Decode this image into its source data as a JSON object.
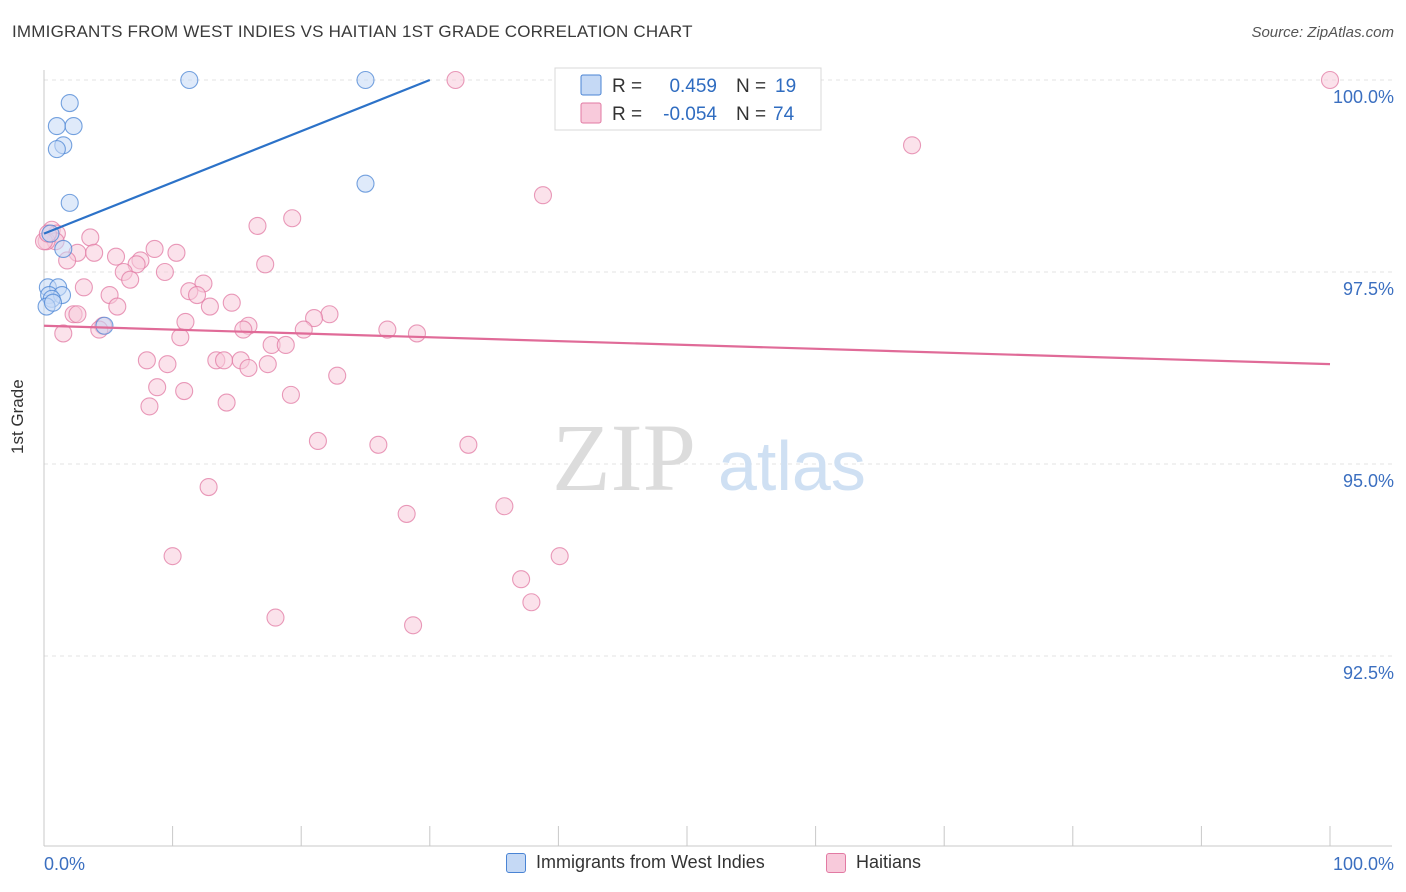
{
  "chart_data": {
    "type": "scatter",
    "title": "IMMIGRANTS FROM WEST INDIES VS HAITIAN 1ST GRADE CORRELATION CHART",
    "source": "Source: ZipAtlas.com",
    "ylabel": "1st Grade",
    "xlim": [
      0,
      100
    ],
    "ylim": [
      90.0,
      100.0
    ],
    "x_tick_labels": [
      "0.0%",
      "100.0%"
    ],
    "y_ticks": [
      {
        "value": 100.0,
        "label": "100.0%"
      },
      {
        "value": 97.5,
        "label": "97.5%"
      },
      {
        "value": 95.0,
        "label": "95.0%"
      },
      {
        "value": 92.5,
        "label": "92.5%"
      }
    ],
    "watermark": {
      "zip": "ZIP",
      "atlas": "atlas"
    },
    "colors": {
      "blue": "#4a84d4",
      "blue_fill": "#c5d9f5",
      "pink": "#e27aa3",
      "pink_fill": "#f8cadb",
      "line_blue": "#2c72c8",
      "line_pink": "#e06b98",
      "value_blue": "#2f6cc0"
    },
    "stats": [
      {
        "r_label": "R =",
        "r_value": "0.459",
        "n_label": "N =",
        "n_value": "19"
      },
      {
        "r_label": "R =",
        "r_value": "-0.054",
        "n_label": "N =",
        "n_value": "74"
      }
    ],
    "series": [
      {
        "name": "Immigrants from West Indies",
        "color": "blue",
        "trend": {
          "x": [
            0.0,
            30.0
          ],
          "y": [
            98.0,
            100.0
          ]
        },
        "points": [
          [
            11.3,
            100.0
          ],
          [
            25.0,
            100.0
          ],
          [
            2.0,
            99.7
          ],
          [
            1.0,
            99.4
          ],
          [
            2.3,
            99.4
          ],
          [
            1.5,
            99.15
          ],
          [
            1.0,
            99.1
          ],
          [
            2.0,
            98.4
          ],
          [
            25.0,
            98.65
          ],
          [
            0.5,
            98.0
          ],
          [
            1.5,
            97.8
          ],
          [
            0.3,
            97.3
          ],
          [
            1.1,
            97.3
          ],
          [
            0.4,
            97.2
          ],
          [
            1.4,
            97.2
          ],
          [
            0.6,
            97.15
          ],
          [
            0.2,
            97.05
          ],
          [
            0.7,
            97.1
          ],
          [
            4.7,
            96.8
          ]
        ]
      },
      {
        "name": "Haitians",
        "color": "pink",
        "trend": {
          "x": [
            0.0,
            100.0
          ],
          "y": [
            96.8,
            96.3
          ]
        },
        "points": [
          [
            32.0,
            100.0
          ],
          [
            100.0,
            100.0
          ],
          [
            67.5,
            99.15
          ],
          [
            38.8,
            98.5
          ],
          [
            19.3,
            98.2
          ],
          [
            16.6,
            98.1
          ],
          [
            0.6,
            98.05
          ],
          [
            1.0,
            98.0
          ],
          [
            3.6,
            97.95
          ],
          [
            0.9,
            97.9
          ],
          [
            0.2,
            97.9
          ],
          [
            2.6,
            97.75
          ],
          [
            3.9,
            97.75
          ],
          [
            5.6,
            97.7
          ],
          [
            8.6,
            97.8
          ],
          [
            10.3,
            97.75
          ],
          [
            7.5,
            97.65
          ],
          [
            7.2,
            97.6
          ],
          [
            1.8,
            97.65
          ],
          [
            17.2,
            97.6
          ],
          [
            6.2,
            97.5
          ],
          [
            9.4,
            97.5
          ],
          [
            6.7,
            97.4
          ],
          [
            12.4,
            97.35
          ],
          [
            3.1,
            97.3
          ],
          [
            11.3,
            97.25
          ],
          [
            11.9,
            97.2
          ],
          [
            5.1,
            97.2
          ],
          [
            5.7,
            97.05
          ],
          [
            14.6,
            97.1
          ],
          [
            12.9,
            97.05
          ],
          [
            2.3,
            96.95
          ],
          [
            2.6,
            96.95
          ],
          [
            22.2,
            96.95
          ],
          [
            21.0,
            96.9
          ],
          [
            11.0,
            96.85
          ],
          [
            4.6,
            96.8
          ],
          [
            4.3,
            96.75
          ],
          [
            15.9,
            96.8
          ],
          [
            15.5,
            96.75
          ],
          [
            20.2,
            96.75
          ],
          [
            26.7,
            96.75
          ],
          [
            29.0,
            96.7
          ],
          [
            1.5,
            96.7
          ],
          [
            10.6,
            96.65
          ],
          [
            17.7,
            96.55
          ],
          [
            18.8,
            96.55
          ],
          [
            8.0,
            96.35
          ],
          [
            13.4,
            96.35
          ],
          [
            14.0,
            96.35
          ],
          [
            15.3,
            96.35
          ],
          [
            9.6,
            96.3
          ],
          [
            17.4,
            96.3
          ],
          [
            15.9,
            96.25
          ],
          [
            22.8,
            96.15
          ],
          [
            8.8,
            96.0
          ],
          [
            10.9,
            95.95
          ],
          [
            19.2,
            95.9
          ],
          [
            14.2,
            95.8
          ],
          [
            8.2,
            95.75
          ],
          [
            21.3,
            95.3
          ],
          [
            26.0,
            95.25
          ],
          [
            33.0,
            95.25
          ],
          [
            12.8,
            94.7
          ],
          [
            35.8,
            94.45
          ],
          [
            28.2,
            94.35
          ],
          [
            10.0,
            93.8
          ],
          [
            40.1,
            93.8
          ],
          [
            37.1,
            93.5
          ],
          [
            37.9,
            93.2
          ],
          [
            18.0,
            93.0
          ],
          [
            28.7,
            92.9
          ],
          [
            0.0,
            97.9
          ],
          [
            0.3,
            98.0
          ]
        ]
      }
    ]
  }
}
